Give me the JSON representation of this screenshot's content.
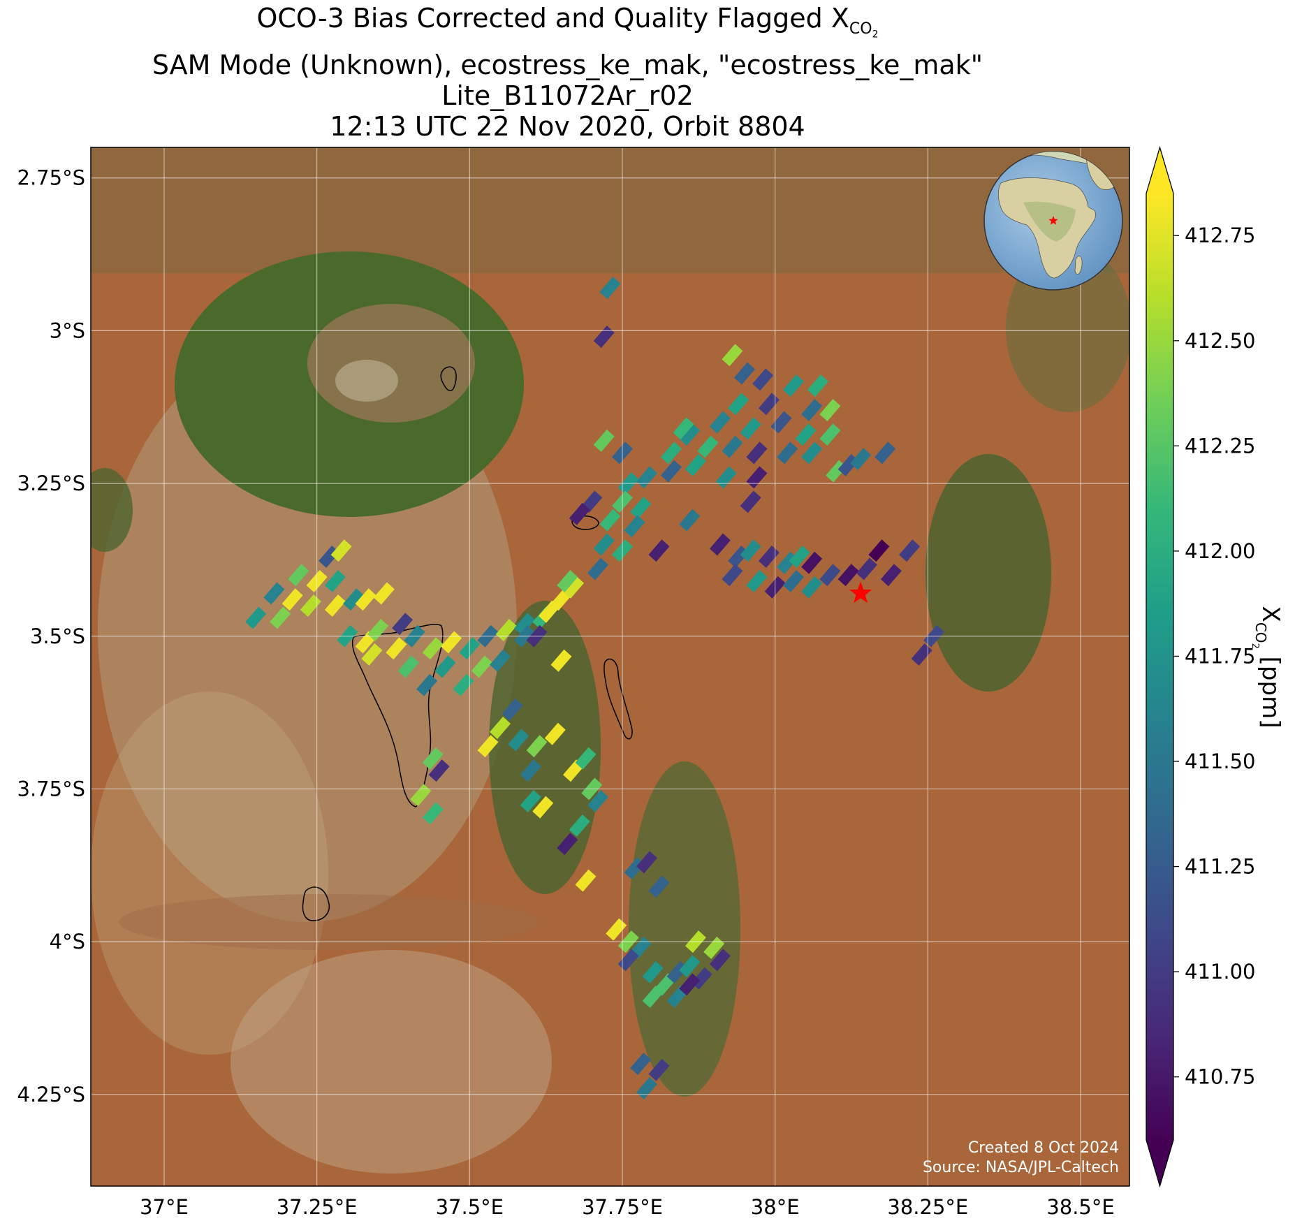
{
  "title": {
    "line1_prefix": "OCO-3 Bias Corrected and Quality Flagged X",
    "line1_sub": "CO",
    "line1_sub2": "2",
    "line2": "SAM Mode (Unknown), ecostress_ke_mak, \"ecostress_ke_mak\"",
    "line3": "Lite_B11072Ar_r02",
    "line4": "12:13 UTC 22 Nov 2020, Orbit 8804"
  },
  "footer": {
    "created": "Created 8 Oct 2024",
    "source": "Source: NASA/JPL-Caltech"
  },
  "colors": {
    "viridis": [
      "#440154",
      "#482878",
      "#3e4989",
      "#31688e",
      "#26828e",
      "#1f9e89",
      "#35b779",
      "#6ece58",
      "#b5de2b",
      "#fde725"
    ],
    "target_star": "#ff0000",
    "terrain_base": "#a8663a",
    "gridline": "#ffffff"
  },
  "map": {
    "lon_range": [
      36.88,
      38.58
    ],
    "lat_range": [
      -4.4,
      -2.7
    ],
    "lon_ticks": [
      {
        "value": 37.0,
        "label": "37°E"
      },
      {
        "value": 37.25,
        "label": "37.25°E"
      },
      {
        "value": 37.5,
        "label": "37.5°E"
      },
      {
        "value": 37.75,
        "label": "37.75°E"
      },
      {
        "value": 38.0,
        "label": "38°E"
      },
      {
        "value": 38.25,
        "label": "38.25°E"
      },
      {
        "value": 38.5,
        "label": "38.5°E"
      }
    ],
    "lat_ticks": [
      {
        "value": -2.75,
        "label": "2.75°S"
      },
      {
        "value": -3.0,
        "label": "3°S"
      },
      {
        "value": -3.25,
        "label": "3.25°S"
      },
      {
        "value": -3.5,
        "label": "3.5°S"
      },
      {
        "value": -3.75,
        "label": "3.75°S"
      },
      {
        "value": -4.0,
        "label": "4°S"
      },
      {
        "value": -4.25,
        "label": "4.25°S"
      }
    ],
    "target": {
      "lon": 38.14,
      "lat": -3.43
    },
    "inset_globe": "africa-globe-icon"
  },
  "colorbar": {
    "label_prefix": "X",
    "label_sub": "CO",
    "label_sub2": "2",
    "label_suffix": " [ppm]",
    "min": 410.6,
    "max": 412.85,
    "extend": "both",
    "ticks": [
      "410.75",
      "411.00",
      "411.25",
      "411.50",
      "411.75",
      "412.00",
      "412.25",
      "412.50",
      "412.75"
    ],
    "tick_values": [
      410.75,
      411.0,
      411.25,
      411.5,
      411.75,
      412.0,
      412.25,
      412.5,
      412.75
    ]
  },
  "chart_data": {
    "type": "scatter",
    "xlabel": "",
    "ylabel": "",
    "units": "ppm",
    "soundings": [
      {
        "lon": 37.73,
        "lat": -2.93,
        "xco2": 411.6
      },
      {
        "lon": 37.72,
        "lat": -3.01,
        "xco2": 410.9
      },
      {
        "lon": 37.93,
        "lat": -3.04,
        "xco2": 412.5
      },
      {
        "lon": 37.95,
        "lat": -3.07,
        "xco2": 411.3
      },
      {
        "lon": 37.98,
        "lat": -3.08,
        "xco2": 411.1
      },
      {
        "lon": 38.03,
        "lat": -3.09,
        "xco2": 411.8
      },
      {
        "lon": 38.07,
        "lat": -3.09,
        "xco2": 412.0
      },
      {
        "lon": 38.06,
        "lat": -3.13,
        "xco2": 411.4
      },
      {
        "lon": 38.09,
        "lat": -3.13,
        "xco2": 412.4
      },
      {
        "lon": 37.94,
        "lat": -3.12,
        "xco2": 411.9
      },
      {
        "lon": 37.99,
        "lat": -3.12,
        "xco2": 411.0
      },
      {
        "lon": 37.91,
        "lat": -3.15,
        "xco2": 411.6
      },
      {
        "lon": 37.96,
        "lat": -3.16,
        "xco2": 411.8
      },
      {
        "lon": 38.01,
        "lat": -3.15,
        "xco2": 411.2
      },
      {
        "lon": 38.05,
        "lat": -3.17,
        "xco2": 411.9
      },
      {
        "lon": 38.09,
        "lat": -3.17,
        "xco2": 412.2
      },
      {
        "lon": 37.86,
        "lat": -3.17,
        "xco2": 411.7
      },
      {
        "lon": 37.89,
        "lat": -3.19,
        "xco2": 412.1
      },
      {
        "lon": 37.93,
        "lat": -3.19,
        "xco2": 411.5
      },
      {
        "lon": 37.97,
        "lat": -3.2,
        "xco2": 410.9
      },
      {
        "lon": 38.02,
        "lat": -3.2,
        "xco2": 411.4
      },
      {
        "lon": 38.06,
        "lat": -3.2,
        "xco2": 411.7
      },
      {
        "lon": 37.83,
        "lat": -3.2,
        "xco2": 412.0
      },
      {
        "lon": 37.79,
        "lat": -3.24,
        "xco2": 411.6
      },
      {
        "lon": 37.83,
        "lat": -3.23,
        "xco2": 411.3
      },
      {
        "lon": 37.87,
        "lat": -3.22,
        "xco2": 411.9
      },
      {
        "lon": 37.92,
        "lat": -3.24,
        "xco2": 411.7
      },
      {
        "lon": 37.97,
        "lat": -3.24,
        "xco2": 410.8
      },
      {
        "lon": 37.96,
        "lat": -3.28,
        "xco2": 410.9
      },
      {
        "lon": 38.1,
        "lat": -3.23,
        "xco2": 412.3
      },
      {
        "lon": 38.12,
        "lat": -3.22,
        "xco2": 411.2
      },
      {
        "lon": 38.14,
        "lat": -3.21,
        "xco2": 411.5
      },
      {
        "lon": 38.18,
        "lat": -3.2,
        "xco2": 411.3
      },
      {
        "lon": 37.85,
        "lat": -3.16,
        "xco2": 412.1
      },
      {
        "lon": 37.76,
        "lat": -3.25,
        "xco2": 411.8
      },
      {
        "lon": 37.75,
        "lat": -3.28,
        "xco2": 412.2
      },
      {
        "lon": 37.78,
        "lat": -3.29,
        "xco2": 411.9
      },
      {
        "lon": 37.73,
        "lat": -3.31,
        "xco2": 412.1
      },
      {
        "lon": 37.77,
        "lat": -3.32,
        "xco2": 411.6
      },
      {
        "lon": 37.72,
        "lat": -3.35,
        "xco2": 411.7
      },
      {
        "lon": 37.75,
        "lat": -3.36,
        "xco2": 412.0
      },
      {
        "lon": 37.71,
        "lat": -3.39,
        "xco2": 411.4
      },
      {
        "lon": 37.7,
        "lat": -3.28,
        "xco2": 411.0
      },
      {
        "lon": 37.68,
        "lat": -3.3,
        "xco2": 410.8
      },
      {
        "lon": 37.75,
        "lat": -3.2,
        "xco2": 411.3
      },
      {
        "lon": 37.86,
        "lat": -3.31,
        "xco2": 411.5
      },
      {
        "lon": 37.91,
        "lat": -3.35,
        "xco2": 410.8
      },
      {
        "lon": 37.94,
        "lat": -3.37,
        "xco2": 411.2
      },
      {
        "lon": 37.96,
        "lat": -3.36,
        "xco2": 411.7
      },
      {
        "lon": 37.99,
        "lat": -3.37,
        "xco2": 410.9
      },
      {
        "lon": 38.02,
        "lat": -3.38,
        "xco2": 411.6
      },
      {
        "lon": 38.04,
        "lat": -3.37,
        "xco2": 411.9
      },
      {
        "lon": 38.06,
        "lat": -3.38,
        "xco2": 410.7
      },
      {
        "lon": 37.93,
        "lat": -3.4,
        "xco2": 411.1
      },
      {
        "lon": 37.97,
        "lat": -3.41,
        "xco2": 411.8
      },
      {
        "lon": 38.0,
        "lat": -3.42,
        "xco2": 410.8
      },
      {
        "lon": 38.03,
        "lat": -3.41,
        "xco2": 411.4
      },
      {
        "lon": 38.06,
        "lat": -3.42,
        "xco2": 411.7
      },
      {
        "lon": 38.09,
        "lat": -3.4,
        "xco2": 411.1
      },
      {
        "lon": 38.12,
        "lat": -3.4,
        "xco2": 410.7
      },
      {
        "lon": 38.15,
        "lat": -3.39,
        "xco2": 410.9
      },
      {
        "lon": 38.17,
        "lat": -3.36,
        "xco2": 410.6
      },
      {
        "lon": 38.19,
        "lat": -3.4,
        "xco2": 410.8
      },
      {
        "lon": 38.22,
        "lat": -3.36,
        "xco2": 411.0
      },
      {
        "lon": 37.81,
        "lat": -3.36,
        "xco2": 410.8
      },
      {
        "lon": 38.24,
        "lat": -3.53,
        "xco2": 410.9
      },
      {
        "lon": 38.26,
        "lat": -3.5,
        "xco2": 411.1
      },
      {
        "lon": 37.72,
        "lat": -3.18,
        "xco2": 412.3
      },
      {
        "lon": 37.27,
        "lat": -3.37,
        "xco2": 411.2
      },
      {
        "lon": 37.29,
        "lat": -3.36,
        "xco2": 412.7
      },
      {
        "lon": 37.22,
        "lat": -3.4,
        "xco2": 412.3
      },
      {
        "lon": 37.25,
        "lat": -3.41,
        "xco2": 412.8
      },
      {
        "lon": 37.28,
        "lat": -3.41,
        "xco2": 411.9
      },
      {
        "lon": 37.18,
        "lat": -3.43,
        "xco2": 411.6
      },
      {
        "lon": 37.21,
        "lat": -3.44,
        "xco2": 412.8
      },
      {
        "lon": 37.24,
        "lat": -3.45,
        "xco2": 412.6
      },
      {
        "lon": 37.28,
        "lat": -3.45,
        "xco2": 412.8
      },
      {
        "lon": 37.31,
        "lat": -3.44,
        "xco2": 411.7
      },
      {
        "lon": 37.15,
        "lat": -3.47,
        "xco2": 411.8
      },
      {
        "lon": 37.19,
        "lat": -3.47,
        "xco2": 412.4
      },
      {
        "lon": 37.33,
        "lat": -3.44,
        "xco2": 412.8
      },
      {
        "lon": 37.36,
        "lat": -3.43,
        "xco2": 412.8
      },
      {
        "lon": 37.3,
        "lat": -3.5,
        "xco2": 411.9
      },
      {
        "lon": 37.33,
        "lat": -3.51,
        "xco2": 412.8
      },
      {
        "lon": 37.35,
        "lat": -3.49,
        "xco2": 412.4
      },
      {
        "lon": 37.38,
        "lat": -3.52,
        "xco2": 412.8
      },
      {
        "lon": 37.41,
        "lat": -3.5,
        "xco2": 411.6
      },
      {
        "lon": 37.44,
        "lat": -3.52,
        "xco2": 412.5
      },
      {
        "lon": 37.47,
        "lat": -3.51,
        "xco2": 412.8
      },
      {
        "lon": 37.5,
        "lat": -3.52,
        "xco2": 411.9
      },
      {
        "lon": 37.53,
        "lat": -3.5,
        "xco2": 411.4
      },
      {
        "lon": 37.56,
        "lat": -3.49,
        "xco2": 412.6
      },
      {
        "lon": 37.59,
        "lat": -3.48,
        "xco2": 411.7
      },
      {
        "lon": 37.62,
        "lat": -3.47,
        "xco2": 412.1
      },
      {
        "lon": 37.34,
        "lat": -3.53,
        "xco2": 412.7
      },
      {
        "lon": 37.4,
        "lat": -3.55,
        "xco2": 412.2
      },
      {
        "lon": 37.46,
        "lat": -3.55,
        "xco2": 411.8
      },
      {
        "lon": 37.52,
        "lat": -3.55,
        "xco2": 412.4
      },
      {
        "lon": 37.43,
        "lat": -3.58,
        "xco2": 411.5
      },
      {
        "lon": 37.49,
        "lat": -3.58,
        "xco2": 412.0
      },
      {
        "lon": 37.55,
        "lat": -3.54,
        "xco2": 411.6
      },
      {
        "lon": 37.39,
        "lat": -3.48,
        "xco2": 411.0
      },
      {
        "lon": 37.59,
        "lat": -3.5,
        "xco2": 411.5
      },
      {
        "lon": 37.61,
        "lat": -3.5,
        "xco2": 410.9
      },
      {
        "lon": 37.63,
        "lat": -3.46,
        "xco2": 412.8
      },
      {
        "lon": 37.65,
        "lat": -3.44,
        "xco2": 412.8
      },
      {
        "lon": 37.67,
        "lat": -3.42,
        "xco2": 412.7
      },
      {
        "lon": 37.66,
        "lat": -3.41,
        "xco2": 412.3
      },
      {
        "lon": 37.57,
        "lat": -3.62,
        "xco2": 411.3
      },
      {
        "lon": 37.65,
        "lat": -3.54,
        "xco2": 412.8
      },
      {
        "lon": 37.53,
        "lat": -3.68,
        "xco2": 412.8
      },
      {
        "lon": 37.55,
        "lat": -3.65,
        "xco2": 412.6
      },
      {
        "lon": 37.58,
        "lat": -3.67,
        "xco2": 411.7
      },
      {
        "lon": 37.61,
        "lat": -3.68,
        "xco2": 412.4
      },
      {
        "lon": 37.64,
        "lat": -3.66,
        "xco2": 412.8
      },
      {
        "lon": 37.6,
        "lat": -3.72,
        "xco2": 411.5
      },
      {
        "lon": 37.67,
        "lat": -3.72,
        "xco2": 412.8
      },
      {
        "lon": 37.69,
        "lat": -3.7,
        "xco2": 412.1
      },
      {
        "lon": 37.7,
        "lat": -3.75,
        "xco2": 412.3
      },
      {
        "lon": 37.71,
        "lat": -3.77,
        "xco2": 411.6
      },
      {
        "lon": 37.62,
        "lat": -3.78,
        "xco2": 412.8
      },
      {
        "lon": 37.6,
        "lat": -3.77,
        "xco2": 411.9
      },
      {
        "lon": 37.42,
        "lat": -3.76,
        "xco2": 412.5
      },
      {
        "lon": 37.44,
        "lat": -3.79,
        "xco2": 412.1
      },
      {
        "lon": 37.45,
        "lat": -3.72,
        "xco2": 410.9
      },
      {
        "lon": 37.44,
        "lat": -3.7,
        "xco2": 412.3
      },
      {
        "lon": 37.66,
        "lat": -3.84,
        "xco2": 410.8
      },
      {
        "lon": 37.68,
        "lat": -3.81,
        "xco2": 412.0
      },
      {
        "lon": 37.69,
        "lat": -3.9,
        "xco2": 412.8
      },
      {
        "lon": 37.77,
        "lat": -3.88,
        "xco2": 411.4
      },
      {
        "lon": 37.79,
        "lat": -3.87,
        "xco2": 410.9
      },
      {
        "lon": 37.81,
        "lat": -3.91,
        "xco2": 411.3
      },
      {
        "lon": 37.74,
        "lat": -3.98,
        "xco2": 412.8
      },
      {
        "lon": 37.76,
        "lat": -4.0,
        "xco2": 412.4
      },
      {
        "lon": 37.78,
        "lat": -4.01,
        "xco2": 411.6
      },
      {
        "lon": 37.76,
        "lat": -4.03,
        "xco2": 411.1
      },
      {
        "lon": 37.8,
        "lat": -4.05,
        "xco2": 411.8
      },
      {
        "lon": 37.82,
        "lat": -4.07,
        "xco2": 412.2
      },
      {
        "lon": 37.84,
        "lat": -4.05,
        "xco2": 411.3
      },
      {
        "lon": 37.86,
        "lat": -4.04,
        "xco2": 411.8
      },
      {
        "lon": 37.87,
        "lat": -4.0,
        "xco2": 412.6
      },
      {
        "lon": 37.88,
        "lat": -4.06,
        "xco2": 411.0
      },
      {
        "lon": 37.9,
        "lat": -4.01,
        "xco2": 412.5
      },
      {
        "lon": 37.91,
        "lat": -4.03,
        "xco2": 410.9
      },
      {
        "lon": 37.8,
        "lat": -4.09,
        "xco2": 412.2
      },
      {
        "lon": 37.84,
        "lat": -4.09,
        "xco2": 411.6
      },
      {
        "lon": 37.86,
        "lat": -4.07,
        "xco2": 410.8
      },
      {
        "lon": 37.78,
        "lat": -4.2,
        "xco2": 411.3
      },
      {
        "lon": 37.79,
        "lat": -4.24,
        "xco2": 411.5
      },
      {
        "lon": 37.81,
        "lat": -4.21,
        "xco2": 411.0
      }
    ]
  }
}
